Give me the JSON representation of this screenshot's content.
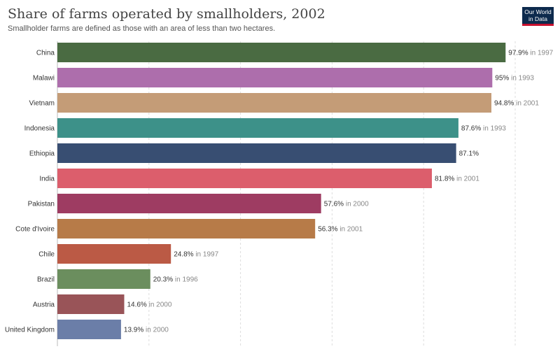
{
  "title": "Share of farms operated by smallholders, 2002",
  "subtitle": "Smallholder farms are defined as those with an area of less than two hectares.",
  "logo": {
    "line1": "Our World",
    "line2": "in Data"
  },
  "chart_data": {
    "type": "bar",
    "orientation": "horizontal",
    "unit": "%",
    "xlim": [
      0,
      100
    ],
    "grid": true,
    "categories": [
      "China",
      "Malawi",
      "Vietnam",
      "Indonesia",
      "Ethiopia",
      "India",
      "Pakistan",
      "Cote d'Ivoire",
      "Chile",
      "Brazil",
      "Austria",
      "United Kingdom"
    ],
    "values": [
      97.9,
      95,
      94.8,
      87.6,
      87.1,
      81.8,
      57.6,
      56.3,
      24.8,
      20.3,
      14.6,
      13.9
    ],
    "value_labels": [
      "97.9%",
      "95%",
      "94.8%",
      "87.6%",
      "87.1%",
      "81.8%",
      "57.6%",
      "56.3%",
      "24.8%",
      "20.3%",
      "14.6%",
      "13.9%"
    ],
    "year_notes": [
      "in 1997",
      "in 1993",
      "in 2001",
      "in 1993",
      "",
      "in 2001",
      "in 2000",
      "in 2001",
      "in 1997",
      "in 1996",
      "in 2000",
      "in 2000"
    ],
    "colors": [
      "#4a6b42",
      "#ad6eac",
      "#c49c77",
      "#3d9189",
      "#384e72",
      "#dc5e6c",
      "#9e3c62",
      "#b77b48",
      "#bb5a45",
      "#6b8e5e",
      "#995458",
      "#6b7ea8"
    ]
  }
}
